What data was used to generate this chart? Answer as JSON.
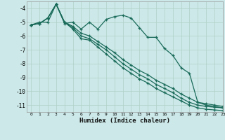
{
  "background_color": "#cce8e8",
  "grid_color": "#b0d0c8",
  "line_color": "#1a6b5a",
  "marker": "+",
  "xlabel": "Humidex (Indice chaleur)",
  "xlim": [
    -0.5,
    23
  ],
  "ylim": [
    -11.5,
    -3.5
  ],
  "yticks": [
    -11,
    -10,
    -9,
    -8,
    -7,
    -6,
    -5,
    -4
  ],
  "xticks": [
    0,
    1,
    2,
    3,
    4,
    5,
    6,
    7,
    8,
    9,
    10,
    11,
    12,
    13,
    14,
    15,
    16,
    17,
    18,
    19,
    20,
    21,
    22,
    23
  ],
  "series": [
    {
      "x": [
        0,
        1,
        2,
        3,
        4,
        5,
        6,
        7,
        8,
        9,
        10,
        11,
        12,
        13,
        14,
        15,
        16,
        17,
        18,
        19,
        20,
        21,
        22,
        23
      ],
      "y": [
        -5.2,
        -5.0,
        -5.0,
        -3.7,
        -5.1,
        -5.0,
        -5.5,
        -5.0,
        -5.5,
        -4.8,
        -4.6,
        -4.5,
        -4.7,
        -5.4,
        -6.1,
        -6.1,
        -6.9,
        -7.4,
        -8.3,
        -8.7,
        -10.8,
        -10.9,
        -11.0,
        -11.1
      ]
    },
    {
      "x": [
        0,
        1,
        2,
        3,
        4,
        5,
        6,
        7,
        8,
        9,
        10,
        11,
        12,
        13,
        14,
        15,
        16,
        17,
        18,
        19,
        20,
        21,
        22,
        23
      ],
      "y": [
        -5.2,
        -5.1,
        -4.7,
        -3.7,
        -5.0,
        -5.3,
        -5.8,
        -6.0,
        -6.4,
        -6.8,
        -7.2,
        -7.7,
        -8.1,
        -8.5,
        -8.8,
        -9.2,
        -9.5,
        -9.8,
        -10.2,
        -10.5,
        -10.8,
        -11.0,
        -11.1,
        -11.2
      ]
    },
    {
      "x": [
        0,
        1,
        2,
        3,
        4,
        5,
        6,
        7,
        8,
        9,
        10,
        11,
        12,
        13,
        14,
        15,
        16,
        17,
        18,
        19,
        20,
        21,
        22,
        23
      ],
      "y": [
        -5.2,
        -5.1,
        -4.7,
        -3.7,
        -5.0,
        -5.4,
        -6.0,
        -6.2,
        -6.6,
        -7.0,
        -7.5,
        -8.0,
        -8.4,
        -8.8,
        -9.1,
        -9.5,
        -9.8,
        -10.1,
        -10.5,
        -10.8,
        -11.0,
        -11.1,
        -11.15,
        -11.2
      ]
    },
    {
      "x": [
        0,
        1,
        2,
        3,
        4,
        5,
        6,
        7,
        8,
        9,
        10,
        11,
        12,
        13,
        14,
        15,
        16,
        17,
        18,
        19,
        20,
        21,
        22,
        23
      ],
      "y": [
        -5.2,
        -5.1,
        -4.7,
        -3.7,
        -5.0,
        -5.5,
        -6.2,
        -6.3,
        -6.8,
        -7.3,
        -7.8,
        -8.3,
        -8.7,
        -9.1,
        -9.4,
        -9.8,
        -10.1,
        -10.4,
        -10.7,
        -11.0,
        -11.2,
        -11.3,
        -11.35,
        -11.4
      ]
    }
  ]
}
